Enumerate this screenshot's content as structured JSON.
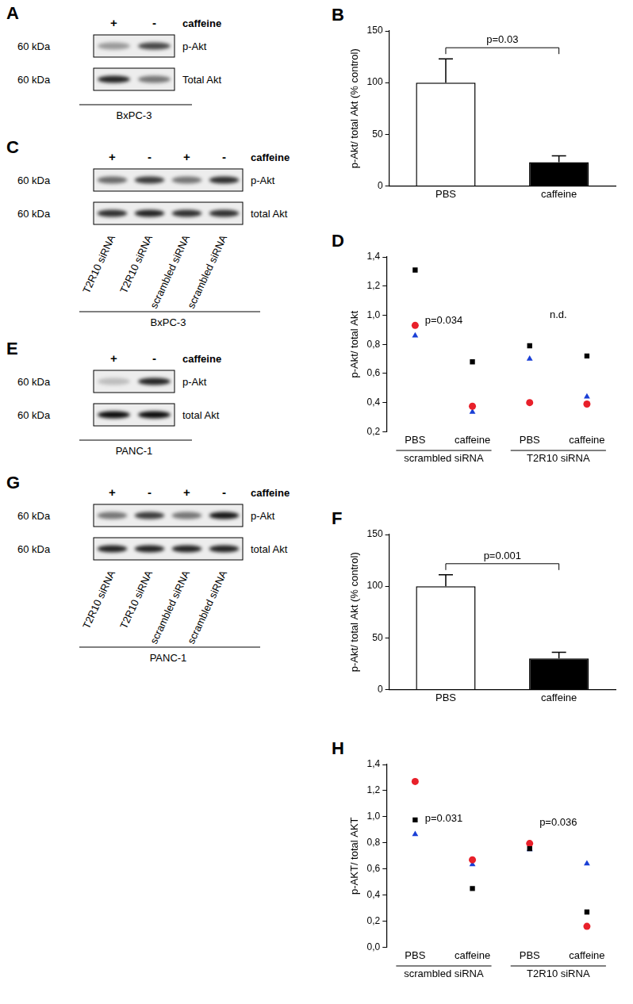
{
  "chart_data": [
    {
      "panel": "B",
      "type": "bar",
      "categories": [
        "PBS",
        "caffeine"
      ],
      "values": [
        100,
        23
      ],
      "errors": [
        23,
        6
      ],
      "colors": [
        "#ffffff",
        "#000000"
      ],
      "ylabel": "p-Akt/ total Akt (% control)",
      "ylim": [
        0,
        150
      ],
      "yticks": [
        0,
        50,
        100,
        150
      ],
      "grid": false,
      "annotation": "p=0.03"
    },
    {
      "panel": "D",
      "type": "scatter",
      "categories": [
        "PBS",
        "caffeine",
        "PBS",
        "caffeine"
      ],
      "groups": [
        "scrambled siRNA",
        "T2R10 siRNA"
      ],
      "annotations": [
        "p=0.034",
        "n.d."
      ],
      "ylabel": "p-Akt/ total Akt",
      "ylim": [
        0.2,
        1.4
      ],
      "yticks": [
        {
          "value": 0.2,
          "label": "0,2"
        },
        {
          "value": 0.4,
          "label": "0,4"
        },
        {
          "value": 0.6,
          "label": "0,6"
        },
        {
          "value": 0.8,
          "label": "0,8"
        },
        {
          "value": 1.0,
          "label": "1,0"
        },
        {
          "value": 1.2,
          "label": "1,2"
        },
        {
          "value": 1.4,
          "label": "1,4"
        }
      ],
      "grid": false,
      "series": [
        {
          "color": "#000000",
          "marker": "square",
          "values": [
            1.31,
            0.68,
            0.79,
            0.72
          ]
        },
        {
          "color": "#e8202a",
          "marker": "circle",
          "values": [
            0.93,
            0.375,
            0.4,
            0.39
          ]
        },
        {
          "color": "#1a3fd6",
          "marker": "triangle",
          "values": [
            0.86,
            0.335,
            0.7,
            0.44
          ]
        }
      ]
    },
    {
      "panel": "F",
      "type": "bar",
      "categories": [
        "PBS",
        "caffeine"
      ],
      "values": [
        100,
        30
      ],
      "errors": [
        11,
        6
      ],
      "colors": [
        "#ffffff",
        "#000000"
      ],
      "ylabel": "p-Akt/ total Akt (% control)",
      "ylim": [
        0,
        150
      ],
      "yticks": [
        0,
        50,
        100,
        150
      ],
      "grid": false,
      "annotation": "p=0.001"
    },
    {
      "panel": "H",
      "type": "scatter",
      "categories": [
        "PBS",
        "caffeine",
        "PBS",
        "caffeine"
      ],
      "groups": [
        "scrambled siRNA",
        "T2R10 siRNA"
      ],
      "annotations": [
        "p=0.031",
        "p=0.036"
      ],
      "ylabel": "p-AKT/ total AKT",
      "ylim": [
        0,
        1.4
      ],
      "yticks": [
        {
          "value": 0,
          "label": "0,0"
        },
        {
          "value": 0.2,
          "label": "0,2"
        },
        {
          "value": 0.4,
          "label": "0,4"
        },
        {
          "value": 0.6,
          "label": "0,6"
        },
        {
          "value": 0.8,
          "label": "0,8"
        },
        {
          "value": 1.0,
          "label": "1,0"
        },
        {
          "value": 1.2,
          "label": "1,2"
        },
        {
          "value": 1.4,
          "label": "1,4"
        }
      ],
      "grid": false,
      "series": [
        {
          "color": "#000000",
          "marker": "square",
          "values": [
            0.975,
            0.45,
            0.755,
            0.27
          ]
        },
        {
          "color": "#e8202a",
          "marker": "circle",
          "values": [
            1.27,
            0.67,
            0.795,
            0.16
          ]
        },
        {
          "color": "#1a3fd6",
          "marker": "triangle",
          "values": [
            0.865,
            0.635,
            0.75,
            0.64
          ]
        }
      ]
    }
  ],
  "blots": [
    {
      "panel": "A",
      "treatment": "caffeine",
      "lanes": [
        "+",
        "-"
      ],
      "cell_line": "BxPC-3",
      "rows": [
        {
          "label": "p-Akt",
          "mw": "60 kDa",
          "intensity": [
            0.35,
            0.7
          ]
        },
        {
          "label": "Total Akt",
          "mw": "60 kDa",
          "intensity": [
            0.85,
            0.5
          ]
        }
      ]
    },
    {
      "panel": "C",
      "treatment": "caffeine",
      "lanes": [
        "+",
        "-",
        "+",
        "-"
      ],
      "cell_line": "BxPC-3",
      "lane_labels": [
        "T2R10 siRNA",
        "T2R10 siRNA",
        "scrambled siRNA",
        "scrambled siRNA"
      ],
      "rows": [
        {
          "label": "p-Akt",
          "mw": "60 kDa",
          "intensity": [
            0.55,
            0.75,
            0.5,
            0.8
          ]
        },
        {
          "label": "total Akt",
          "mw": "60 kDa",
          "intensity": [
            0.8,
            0.85,
            0.8,
            0.8
          ]
        }
      ]
    },
    {
      "panel": "E",
      "treatment": "caffeine",
      "lanes": [
        "+",
        "-"
      ],
      "cell_line": "PANC-1",
      "rows": [
        {
          "label": "p-Akt",
          "mw": "60 kDa",
          "intensity": [
            0.2,
            0.85
          ]
        },
        {
          "label": "total Akt",
          "mw": "60 kDa",
          "intensity": [
            0.95,
            0.95
          ]
        }
      ]
    },
    {
      "panel": "G",
      "treatment": "caffeine",
      "lanes": [
        "+",
        "-",
        "+",
        "-"
      ],
      "cell_line": "PANC-1",
      "lane_labels": [
        "T2R10 siRNA",
        "T2R10 siRNA",
        "scrambled siRNA",
        "scrambled siRNA"
      ],
      "rows": [
        {
          "label": "p-Akt",
          "mw": "60 kDa",
          "intensity": [
            0.5,
            0.75,
            0.5,
            0.9
          ]
        },
        {
          "label": "total Akt",
          "mw": "60 kDa",
          "intensity": [
            0.85,
            0.85,
            0.85,
            0.85
          ]
        }
      ]
    }
  ]
}
